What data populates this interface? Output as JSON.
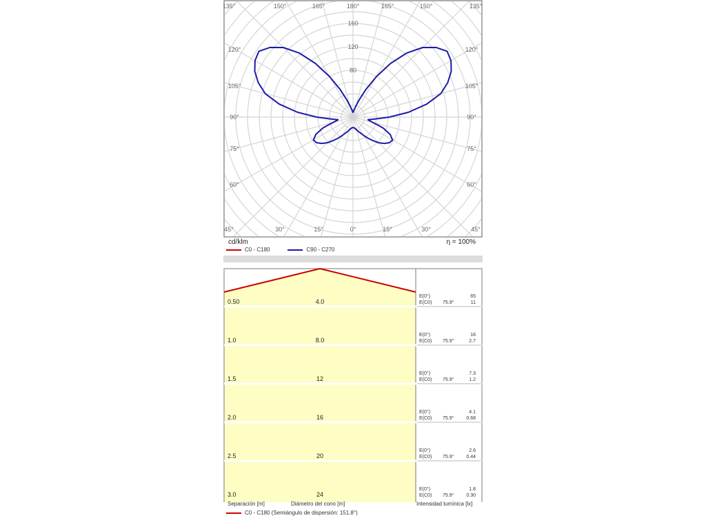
{
  "chart_data": [
    {
      "type": "polar",
      "angle_labels_top": [
        "135°",
        "150°",
        "165°",
        "180°",
        "165°",
        "150°",
        "135°"
      ],
      "angle_labels_bottom": [
        "45°",
        "30°",
        "15°",
        "0°",
        "15°",
        "30°",
        "45°"
      ],
      "angle_labels_side": [
        "120°",
        "105°",
        "90°",
        "75°",
        "60°"
      ],
      "radial_ticks": [
        80,
        120,
        160
      ],
      "rmax": 200,
      "unit_label": "cd/klm",
      "efficiency": "η = 100%",
      "series": [
        {
          "name": "C0 - C180",
          "color": "#cc0000",
          "gamma": [],
          "values": []
        },
        {
          "name": "C90 - C270",
          "color": "#1a1aa6",
          "gamma": [
            0,
            5,
            10,
            15,
            20,
            25,
            30,
            35,
            40,
            45,
            50,
            55,
            60,
            65,
            70,
            72,
            75,
            78,
            80,
            85,
            90,
            95,
            100,
            105,
            110,
            115,
            120,
            125,
            130,
            135,
            140,
            145,
            150,
            155,
            160,
            165,
            170,
            175,
            180
          ],
          "values": [
            18,
            18,
            20,
            22,
            26,
            30,
            36,
            44,
            52,
            62,
            70,
            76,
            78,
            70,
            55,
            45,
            35,
            28,
            26,
            38,
            62,
            95,
            128,
            155,
            172,
            185,
            193,
            196,
            185,
            168,
            143,
            112,
            80,
            52,
            32,
            20,
            14,
            10,
            8
          ]
        }
      ]
    },
    {
      "type": "table",
      "header": {
        "separation": "Separación [m]",
        "diameter": "Diámetro del cono [m]",
        "illuminance": "Intensidad lumínica [lx]"
      },
      "legend": "C0 - C180 (Semiángulo de dispersión: 151.8°)",
      "legend_color": "#cc0000",
      "rows": [
        {
          "separation": "0.50",
          "diameter": "4.0",
          "e0_label": "E(0°)",
          "e0": "65",
          "ec0_label": "E(C0)",
          "angle": "75.9°",
          "ec0": "11"
        },
        {
          "separation": "1.0",
          "diameter": "8.0",
          "e0_label": "E(0°)",
          "e0": "16",
          "ec0_label": "E(C0)",
          "angle": "75.9°",
          "ec0": "2.7"
        },
        {
          "separation": "1.5",
          "diameter": "12",
          "e0_label": "E(0°)",
          "e0": "7.3",
          "ec0_label": "E(C0)",
          "angle": "75.9°",
          "ec0": "1.2"
        },
        {
          "separation": "2.0",
          "diameter": "16",
          "e0_label": "E(0°)",
          "e0": "4.1",
          "ec0_label": "E(C0)",
          "angle": "75.9°",
          "ec0": "0.68"
        },
        {
          "separation": "2.5",
          "diameter": "20",
          "e0_label": "E(0°)",
          "e0": "2.6",
          "ec0_label": "E(C0)",
          "angle": "75.9°",
          "ec0": "0.44"
        },
        {
          "separation": "3.0",
          "diameter": "24",
          "e0_label": "E(0°)",
          "e0": "1.8",
          "ec0_label": "E(C0)",
          "angle": "75.9°",
          "ec0": "0.30"
        }
      ]
    }
  ],
  "colors": {
    "fill": "#fdfdc4",
    "grid": "#d4d4d4",
    "border": "#777777"
  }
}
